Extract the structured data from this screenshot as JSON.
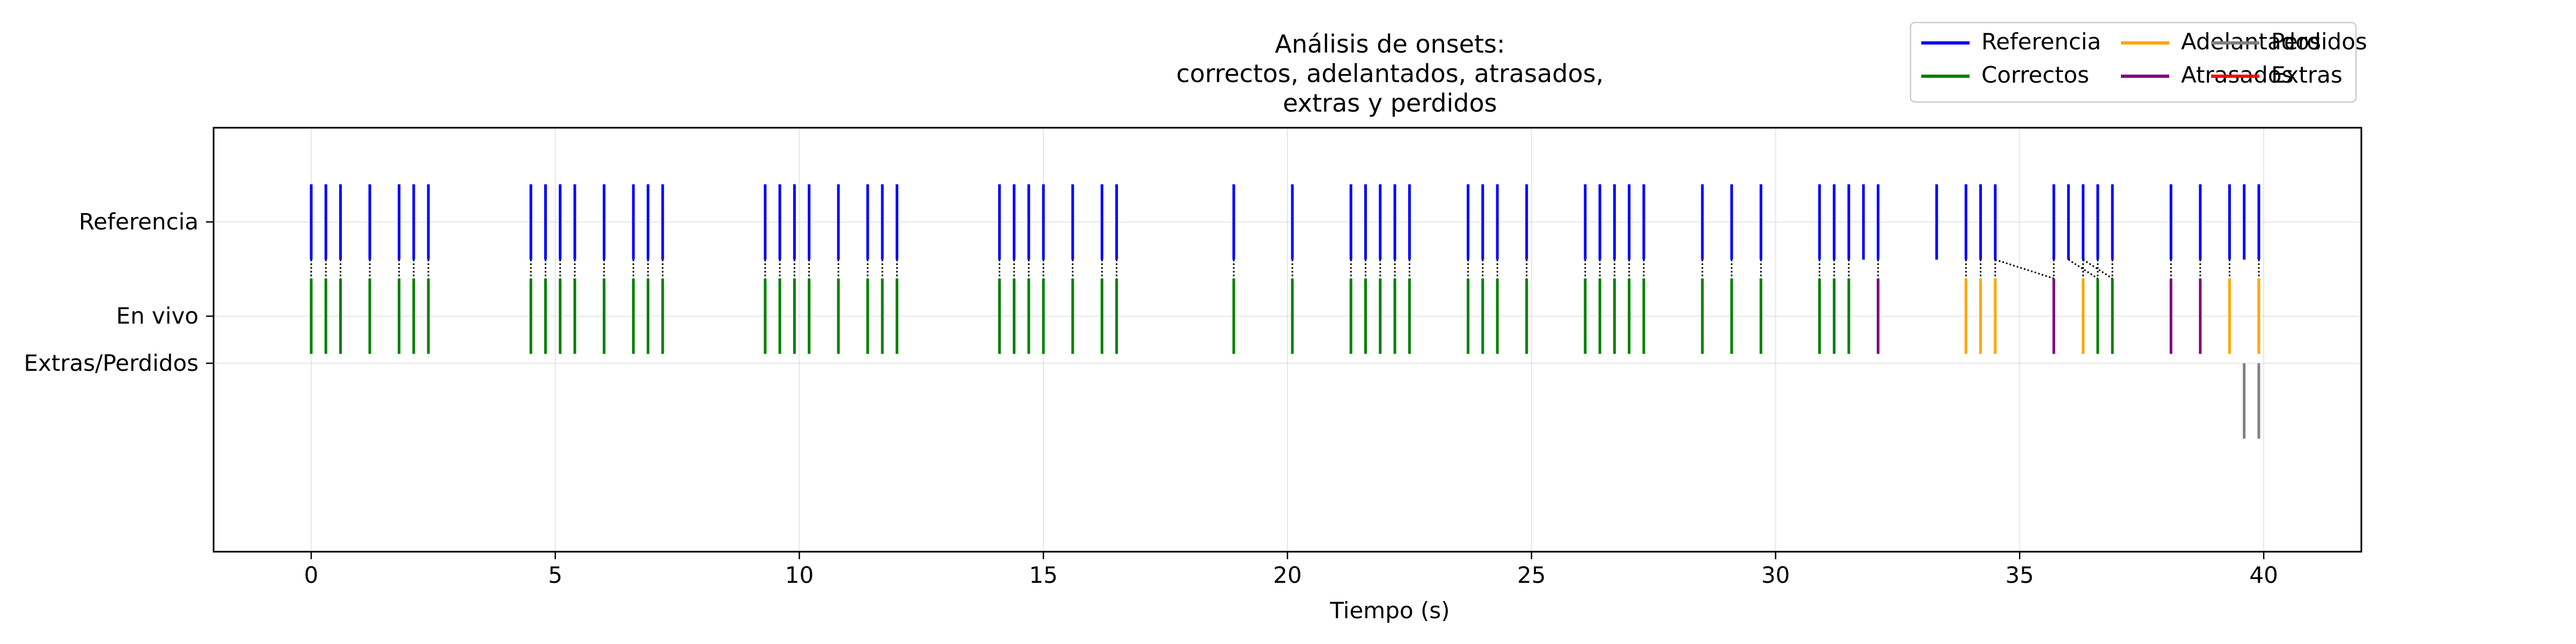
{
  "chart_data": {
    "type": "event-plot",
    "title": [
      "Análisis de onsets:",
      "correctos, adelantados, atrasados,",
      "extras y perdidos"
    ],
    "xlabel": "Tiempo (s)",
    "ylabel": "",
    "xlim": [
      -2.0,
      42.0
    ],
    "xticks": [
      0,
      5,
      10,
      15,
      20,
      25,
      30,
      35,
      40
    ],
    "grid": true,
    "legend": {
      "placement": "top-right",
      "columns": 3
    },
    "rows": [
      "Referencia",
      "En vivo",
      "Extras/Perdidos"
    ],
    "colors": {
      "Referencia": "#0000ff",
      "Correctos": "#008000",
      "Adelantados": "#ffa500",
      "Atrasados": "#800080",
      "Perdidos": "#808080",
      "Extras": "#ff0000"
    },
    "series": [
      {
        "name": "Referencia",
        "values": [
          0.0,
          0.3,
          0.6,
          1.2,
          1.8,
          2.1,
          2.4,
          4.5,
          4.8,
          5.1,
          5.4,
          6.0,
          6.6,
          6.9,
          7.2,
          9.3,
          9.6,
          9.9,
          10.2,
          10.8,
          11.4,
          11.7,
          12.0,
          14.1,
          14.4,
          14.7,
          15.0,
          15.6,
          16.2,
          16.5,
          18.9,
          20.1,
          21.3,
          21.6,
          21.9,
          22.2,
          22.5,
          23.7,
          24.0,
          24.3,
          24.9,
          26.1,
          26.4,
          26.7,
          27.0,
          27.3,
          28.5,
          29.1,
          29.7,
          30.9,
          31.2,
          31.5,
          31.8,
          32.1,
          33.3,
          33.9,
          34.2,
          34.5,
          35.7,
          36.0,
          36.3,
          36.6,
          36.9,
          38.1,
          38.7,
          39.3,
          39.6,
          39.9
        ]
      },
      {
        "name": "Correctos",
        "values": [
          0.0,
          0.3,
          0.6,
          1.2,
          1.8,
          2.1,
          2.4,
          4.5,
          4.8,
          5.1,
          5.4,
          6.0,
          6.6,
          6.9,
          7.2,
          9.3,
          9.6,
          9.9,
          10.2,
          10.8,
          11.4,
          11.7,
          12.0,
          14.1,
          14.4,
          14.7,
          15.0,
          15.6,
          16.2,
          16.5,
          18.9,
          20.1,
          21.3,
          21.6,
          21.9,
          22.2,
          22.5,
          23.7,
          24.0,
          24.3,
          24.9,
          26.1,
          26.4,
          26.7,
          27.0,
          27.3,
          28.5,
          29.1,
          29.7,
          30.9,
          31.2,
          31.5,
          36.6,
          36.9
        ]
      },
      {
        "name": "Adelantados",
        "values": [
          33.9,
          34.2,
          34.5,
          36.3,
          39.3,
          39.9
        ]
      },
      {
        "name": "Atrasados",
        "values": [
          32.1,
          35.7,
          38.1,
          38.7
        ]
      },
      {
        "name": "Perdidos",
        "values": [
          39.6,
          39.9
        ]
      },
      {
        "name": "Extras",
        "values": []
      }
    ],
    "matches": [
      [
        34.5,
        35.7
      ],
      [
        36.0,
        36.6
      ],
      [
        36.3,
        36.9
      ]
    ],
    "ticklen": 0.8
  }
}
